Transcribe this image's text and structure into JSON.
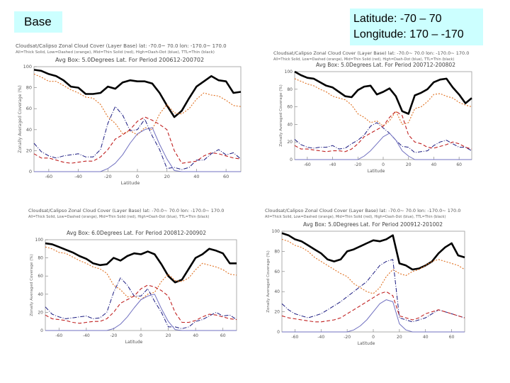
{
  "base_label": "Base",
  "range": {
    "lat": "Latitude: -70 – 70",
    "lon": "Longitude: 170 – -170"
  },
  "colors": {
    "total": "#000000",
    "thick": "#1a1a80",
    "mid": "#e07020",
    "high": "#c02020",
    "thin": "#7070c0",
    "box": "#ccffff"
  },
  "chart_data": [
    {
      "type": "line",
      "header": "Cloudsat/Calipso Zonal Cloud Cover (Layer Base) lat: -70.0~ 70.0 lon: -170.0~ 170.0",
      "subheader": "All=Thick Solid, Low=Dashed (orange), Mid=Thin Solid (red), High=Dash-Dot (blue), TTL=Thin (black)",
      "avgbox": "Avg Box: 5.0Degrees Lat. For Period 200612-200702",
      "ylabel": "Zonally Averaged Coverage (%)",
      "xlabel": "Latitude",
      "xlim": [
        -70,
        70
      ],
      "ylim": [
        0,
        100
      ],
      "xticks": [
        -60,
        -40,
        -20,
        0,
        20,
        40,
        60
      ],
      "yticks": [
        0,
        20,
        40,
        60,
        80,
        100
      ],
      "x": [
        -70,
        -65,
        -60,
        -55,
        -50,
        -45,
        -40,
        -35,
        -30,
        -25,
        -20,
        -15,
        -10,
        -5,
        0,
        5,
        10,
        15,
        20,
        25,
        30,
        35,
        40,
        45,
        50,
        55,
        60,
        65,
        70
      ],
      "series": [
        {
          "name": "All",
          "values": [
            97,
            96,
            93,
            91,
            87,
            81,
            80,
            74,
            74,
            75,
            81,
            79,
            85,
            87,
            86,
            86,
            84,
            75,
            63,
            52,
            58,
            70,
            81,
            86,
            91,
            87,
            86,
            75,
            76
          ]
        },
        {
          "name": "Low",
          "values": [
            93,
            90,
            86,
            86,
            82,
            78,
            75,
            71,
            70,
            64,
            52,
            46,
            36,
            39,
            35,
            42,
            40,
            55,
            64,
            56,
            55,
            60,
            69,
            75,
            73,
            72,
            68,
            63,
            62
          ]
        },
        {
          "name": "High",
          "values": [
            27,
            19,
            15,
            13,
            15,
            16,
            17,
            14,
            14,
            21,
            46,
            62,
            54,
            39,
            40,
            50,
            34,
            21,
            3,
            4,
            2,
            4,
            11,
            11,
            17,
            21,
            16,
            18,
            12
          ]
        },
        {
          "name": "Mid",
          "values": [
            17,
            13,
            13,
            11,
            9,
            8,
            9,
            10,
            10,
            14,
            21,
            31,
            35,
            40,
            48,
            52,
            49,
            45,
            40,
            20,
            8,
            9,
            10,
            15,
            18,
            17,
            15,
            13,
            12
          ]
        },
        {
          "name": "TTL",
          "values": [
            0,
            0,
            0,
            0,
            0,
            0,
            0,
            0,
            0,
            0,
            3,
            8,
            16,
            27,
            36,
            40,
            42,
            26,
            12,
            1,
            0,
            0,
            0,
            0,
            0,
            0,
            0,
            0,
            0
          ]
        }
      ]
    },
    {
      "type": "line",
      "header": "Cloudsat/Calipso Zonal Cloud Cover (Layer Base) lat: -70.0~ 70.0 lon: -170.0~ 170.0",
      "subheader": "All=Thick Solid, Low=Dashed (orange), Mid=Thin Solid (red), High=Dash-Dot (blue), TTL=Thin (black)",
      "avgbox": "Avg Box: 5.0Degrees Lat. For Period 200712-200802",
      "ylabel": "Zonally Averaged Coverage (%)",
      "xlabel": "Latitude",
      "xlim": [
        -70,
        70
      ],
      "ylim": [
        0,
        100
      ],
      "xticks": [
        -60,
        -40,
        -20,
        0,
        20,
        40,
        60
      ],
      "yticks": [
        0,
        20,
        40,
        60,
        80,
        100
      ],
      "x": [
        -70,
        -65,
        -60,
        -55,
        -50,
        -45,
        -40,
        -35,
        -30,
        -25,
        -20,
        -15,
        -10,
        -5,
        0,
        5,
        10,
        15,
        20,
        25,
        30,
        35,
        40,
        45,
        50,
        55,
        60,
        65,
        70
      ],
      "series": [
        {
          "name": "All",
          "values": [
            100,
            96,
            93,
            92,
            88,
            84,
            82,
            77,
            72,
            71,
            79,
            83,
            84,
            74,
            77,
            81,
            72,
            55,
            52,
            73,
            76,
            80,
            88,
            91,
            92,
            82,
            74,
            64,
            70
          ]
        },
        {
          "name": "Low",
          "values": [
            92,
            89,
            86,
            84,
            80,
            77,
            72,
            70,
            68,
            62,
            52,
            48,
            42,
            44,
            38,
            44,
            55,
            40,
            42,
            58,
            60,
            66,
            74,
            75,
            72,
            70,
            65,
            62,
            60
          ]
        },
        {
          "name": "High",
          "values": [
            23,
            17,
            14,
            13,
            14,
            14,
            16,
            12,
            13,
            18,
            22,
            28,
            38,
            42,
            36,
            30,
            22,
            15,
            14,
            8,
            9,
            10,
            16,
            20,
            22,
            18,
            14,
            14,
            10
          ]
        },
        {
          "name": "Mid",
          "values": [
            16,
            12,
            12,
            11,
            10,
            9,
            10,
            10,
            9,
            12,
            18,
            26,
            30,
            34,
            38,
            48,
            55,
            50,
            28,
            20,
            18,
            14,
            13,
            15,
            17,
            20,
            18,
            14,
            12
          ]
        },
        {
          "name": "TTL",
          "values": [
            0,
            0,
            0,
            0,
            0,
            0,
            0,
            0,
            0,
            0,
            0,
            4,
            10,
            18,
            26,
            30,
            22,
            10,
            4,
            0,
            0,
            0,
            0,
            0,
            0,
            0,
            0,
            0,
            0
          ]
        }
      ]
    },
    {
      "type": "line",
      "header": "Cloudsat/Calipso Zonal Cloud Cover (Layer Base) lat: -70.0~ 70.0 lon: -170.0~ 170.0",
      "subheader": "All=Thick Solid, Low=Dashed (orange), Mid=Thin Solid (red), High=Dash-Dot (blue), TTL=Thin (black)",
      "avgbox": "Avg Box: 6.0Degrees Lat. For Period 200812-200902",
      "ylabel": "Zonally Averaged Coverage (%)",
      "xlabel": "Latitude",
      "xlim": [
        -70,
        70
      ],
      "ylim": [
        0,
        100
      ],
      "xticks": [
        -60,
        -40,
        -20,
        0,
        20,
        40,
        60
      ],
      "yticks": [
        0,
        20,
        40,
        60,
        80,
        100
      ],
      "x": [
        -70,
        -65,
        -60,
        -55,
        -50,
        -45,
        -40,
        -35,
        -30,
        -25,
        -20,
        -15,
        -10,
        -5,
        0,
        5,
        10,
        15,
        20,
        25,
        30,
        35,
        40,
        45,
        50,
        55,
        60,
        65,
        70
      ],
      "series": [
        {
          "name": "All",
          "values": [
            96,
            95,
            92,
            89,
            86,
            82,
            79,
            74,
            72,
            73,
            80,
            77,
            82,
            85,
            84,
            87,
            84,
            73,
            60,
            53,
            56,
            68,
            80,
            84,
            90,
            88,
            85,
            74,
            74
          ]
        },
        {
          "name": "Low",
          "values": [
            92,
            90,
            86,
            85,
            81,
            77,
            74,
            70,
            68,
            63,
            50,
            45,
            37,
            38,
            34,
            40,
            42,
            54,
            62,
            55,
            54,
            58,
            67,
            74,
            72,
            70,
            67,
            62,
            61
          ]
        },
        {
          "name": "High",
          "values": [
            26,
            18,
            15,
            13,
            14,
            15,
            16,
            13,
            14,
            20,
            42,
            58,
            50,
            38,
            38,
            46,
            32,
            20,
            4,
            4,
            2,
            4,
            10,
            12,
            16,
            20,
            16,
            17,
            12
          ]
        },
        {
          "name": "Mid",
          "values": [
            17,
            13,
            12,
            11,
            9,
            8,
            9,
            10,
            10,
            13,
            20,
            30,
            34,
            38,
            46,
            50,
            48,
            44,
            38,
            20,
            9,
            9,
            11,
            15,
            18,
            17,
            15,
            13,
            12
          ]
        },
        {
          "name": "TTL",
          "values": [
            0,
            0,
            0,
            0,
            0,
            0,
            0,
            0,
            0,
            0,
            2,
            7,
            15,
            25,
            34,
            38,
            40,
            24,
            10,
            1,
            0,
            0,
            0,
            0,
            0,
            0,
            0,
            0,
            0
          ]
        }
      ]
    },
    {
      "type": "line",
      "header": "Cloudsat/Calipso Zonal Cloud Cover (Layer Base) lat: -70.0~ 70.0 lon: -170.0~ 170.0",
      "subheader": "All=Thick Solid, Low=Dashed (orange), Mid=Thin Solid (red), High=Dash-Dot (blue), TTL=Thin (black)",
      "avgbox": "Avg Box: 5.0Degrees Lat. For Period 200912-201002",
      "ylabel": "Zonally Averaged Coverage (%)",
      "xlabel": "Latitude",
      "xlim": [
        -70,
        70
      ],
      "ylim": [
        0,
        100
      ],
      "xticks": [
        -60,
        -40,
        -20,
        0,
        20,
        40,
        60
      ],
      "yticks": [
        0,
        20,
        40,
        60,
        80,
        100
      ],
      "x": [
        -70,
        -65,
        -60,
        -55,
        -50,
        -45,
        -40,
        -35,
        -30,
        -25,
        -20,
        -15,
        -10,
        -5,
        0,
        5,
        10,
        15,
        20,
        25,
        30,
        35,
        40,
        45,
        50,
        55,
        60,
        65,
        70
      ],
      "series": [
        {
          "name": "All",
          "values": [
            98,
            96,
            92,
            90,
            86,
            82,
            78,
            72,
            70,
            72,
            80,
            82,
            85,
            88,
            91,
            90,
            92,
            96,
            68,
            66,
            62,
            63,
            66,
            70,
            78,
            84,
            88,
            76,
            74
          ]
        },
        {
          "name": "Low",
          "values": [
            92,
            90,
            86,
            84,
            80,
            74,
            70,
            66,
            62,
            58,
            55,
            48,
            44,
            40,
            38,
            44,
            55,
            62,
            58,
            56,
            60,
            62,
            66,
            70,
            72,
            70,
            68,
            66,
            62
          ]
        },
        {
          "name": "High",
          "values": [
            28,
            22,
            18,
            16,
            14,
            16,
            18,
            22,
            26,
            30,
            35,
            40,
            45,
            50,
            58,
            66,
            70,
            72,
            14,
            12,
            10,
            12,
            14,
            18,
            22,
            20,
            18,
            16,
            14
          ]
        },
        {
          "name": "Mid",
          "values": [
            16,
            14,
            13,
            12,
            11,
            10,
            10,
            11,
            12,
            14,
            18,
            22,
            26,
            30,
            34,
            38,
            40,
            36,
            16,
            14,
            12,
            14,
            18,
            20,
            22,
            20,
            18,
            16,
            14
          ]
        },
        {
          "name": "TTL",
          "values": [
            0,
            0,
            0,
            0,
            0,
            0,
            0,
            0,
            0,
            0,
            0,
            2,
            6,
            12,
            20,
            28,
            32,
            30,
            8,
            2,
            0,
            0,
            0,
            0,
            0,
            0,
            0,
            0,
            0
          ]
        }
      ]
    }
  ]
}
